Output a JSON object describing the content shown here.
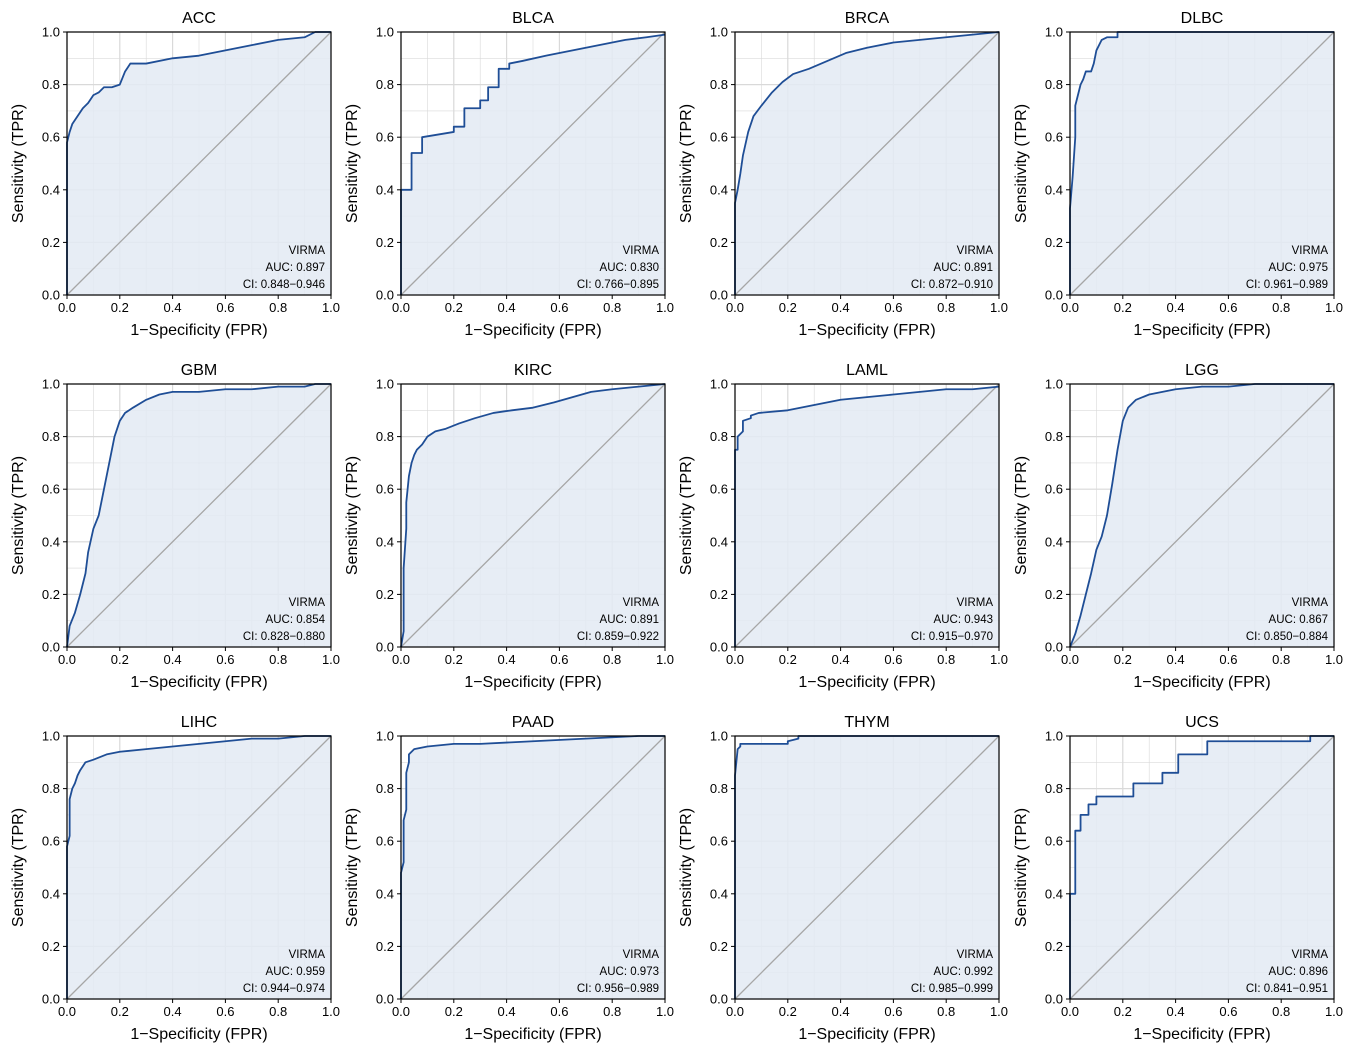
{
  "figure": {
    "x_axis_title": "1−Specificity (FPR)",
    "y_axis_title": "Sensitivity (TPR)",
    "x_tick_labels": [
      "0.0",
      "0.2",
      "0.4",
      "0.6",
      "0.8",
      "1.0"
    ],
    "y_tick_labels": [
      "0.0",
      "0.2",
      "0.4",
      "0.6",
      "0.8",
      "1.0"
    ]
  },
  "colors": {
    "roc_line": "#1f4e96",
    "fill": "#e3eaf3",
    "diagonal": "#a6a6a6",
    "grid": "#d9d9d9"
  },
  "chart_data": [
    {
      "type": "line",
      "title": "ACC",
      "xlabel": "1−Specificity (FPR)",
      "ylabel": "Sensitivity (TPR)",
      "xlim": [
        0,
        1
      ],
      "ylim": [
        0,
        1
      ],
      "grid": true,
      "fill_under_curve": true,
      "reference_line": "diagonal",
      "series": [
        {
          "name": "VIRMA",
          "x": [
            0,
            0,
            0.01,
            0.02,
            0.04,
            0.06,
            0.08,
            0.1,
            0.12,
            0.14,
            0.17,
            0.2,
            0.22,
            0.24,
            0.26,
            0.3,
            0.4,
            0.5,
            0.6,
            0.7,
            0.8,
            0.9,
            0.94,
            1.0
          ],
          "y": [
            0,
            0.58,
            0.62,
            0.65,
            0.68,
            0.71,
            0.73,
            0.76,
            0.77,
            0.79,
            0.79,
            0.8,
            0.85,
            0.88,
            0.88,
            0.88,
            0.9,
            0.91,
            0.93,
            0.95,
            0.97,
            0.98,
            1.0,
            1.0
          ]
        }
      ],
      "annotation": {
        "label": "VIRMA",
        "auc": "AUC: 0.897",
        "ci": "CI: 0.848−0.946"
      }
    },
    {
      "type": "line",
      "title": "BLCA",
      "xlabel": "1−Specificity (FPR)",
      "ylabel": "Sensitivity (TPR)",
      "xlim": [
        0,
        1
      ],
      "ylim": [
        0,
        1
      ],
      "grid": true,
      "fill_under_curve": true,
      "reference_line": "diagonal",
      "series": [
        {
          "name": "VIRMA",
          "x": [
            0,
            0,
            0.04,
            0.04,
            0.08,
            0.08,
            0.2,
            0.2,
            0.24,
            0.24,
            0.3,
            0.3,
            0.33,
            0.33,
            0.37,
            0.37,
            0.41,
            0.41,
            0.46,
            0.55,
            0.65,
            0.75,
            0.85,
            0.93,
            1.0
          ],
          "y": [
            0,
            0.4,
            0.4,
            0.54,
            0.54,
            0.6,
            0.62,
            0.64,
            0.64,
            0.71,
            0.71,
            0.74,
            0.74,
            0.79,
            0.79,
            0.86,
            0.86,
            0.88,
            0.89,
            0.91,
            0.93,
            0.95,
            0.97,
            0.98,
            0.99
          ]
        }
      ],
      "annotation": {
        "label": "VIRMA",
        "auc": "AUC: 0.830",
        "ci": "CI: 0.766−0.895"
      }
    },
    {
      "type": "line",
      "title": "BRCA",
      "xlabel": "1−Specificity (FPR)",
      "ylabel": "Sensitivity (TPR)",
      "xlim": [
        0,
        1
      ],
      "ylim": [
        0,
        1
      ],
      "grid": true,
      "fill_under_curve": true,
      "reference_line": "diagonal",
      "series": [
        {
          "name": "VIRMA",
          "x": [
            0,
            0,
            0.01,
            0.02,
            0.03,
            0.05,
            0.07,
            0.1,
            0.14,
            0.18,
            0.22,
            0.28,
            0.35,
            0.42,
            0.5,
            0.6,
            0.7,
            0.8,
            0.9,
            1.0
          ],
          "y": [
            0,
            0.35,
            0.4,
            0.46,
            0.53,
            0.62,
            0.68,
            0.72,
            0.77,
            0.81,
            0.84,
            0.86,
            0.89,
            0.92,
            0.94,
            0.96,
            0.97,
            0.98,
            0.99,
            1.0
          ]
        }
      ],
      "annotation": {
        "label": "VIRMA",
        "auc": "AUC: 0.891",
        "ci": "CI: 0.872−0.910"
      }
    },
    {
      "type": "line",
      "title": "DLBC",
      "xlabel": "1−Specificity (FPR)",
      "ylabel": "Sensitivity (TPR)",
      "xlim": [
        0,
        1
      ],
      "ylim": [
        0,
        1
      ],
      "grid": true,
      "fill_under_curve": true,
      "reference_line": "diagonal",
      "series": [
        {
          "name": "VIRMA",
          "x": [
            0,
            0,
            0.01,
            0.02,
            0.02,
            0.03,
            0.04,
            0.05,
            0.06,
            0.08,
            0.09,
            0.1,
            0.12,
            0.14,
            0.18,
            0.18,
            1.0
          ],
          "y": [
            0,
            0.33,
            0.45,
            0.6,
            0.72,
            0.76,
            0.8,
            0.82,
            0.85,
            0.85,
            0.88,
            0.93,
            0.97,
            0.98,
            0.98,
            1.0,
            1.0
          ]
        }
      ],
      "annotation": {
        "label": "VIRMA",
        "auc": "AUC: 0.975",
        "ci": "CI: 0.961−0.989"
      }
    },
    {
      "type": "line",
      "title": "GBM",
      "xlabel": "1−Specificity (FPR)",
      "ylabel": "Sensitivity (TPR)",
      "xlim": [
        0,
        1
      ],
      "ylim": [
        0,
        1
      ],
      "grid": true,
      "fill_under_curve": true,
      "reference_line": "diagonal",
      "series": [
        {
          "name": "VIRMA",
          "x": [
            0,
            0.01,
            0.03,
            0.05,
            0.07,
            0.08,
            0.1,
            0.12,
            0.14,
            0.16,
            0.18,
            0.2,
            0.22,
            0.25,
            0.3,
            0.35,
            0.4,
            0.5,
            0.6,
            0.7,
            0.8,
            0.9,
            0.94,
            1.0
          ],
          "y": [
            0,
            0.08,
            0.13,
            0.2,
            0.28,
            0.36,
            0.45,
            0.5,
            0.6,
            0.7,
            0.8,
            0.86,
            0.89,
            0.91,
            0.94,
            0.96,
            0.97,
            0.97,
            0.98,
            0.98,
            0.99,
            0.99,
            1.0,
            1.0
          ]
        }
      ],
      "annotation": {
        "label": "VIRMA",
        "auc": "AUC: 0.854",
        "ci": "CI: 0.828−0.880"
      }
    },
    {
      "type": "line",
      "title": "KIRC",
      "xlabel": "1−Specificity (FPR)",
      "ylabel": "Sensitivity (TPR)",
      "xlim": [
        0,
        1
      ],
      "ylim": [
        0,
        1
      ],
      "grid": true,
      "fill_under_curve": true,
      "reference_line": "diagonal",
      "series": [
        {
          "name": "VIRMA",
          "x": [
            0,
            0.01,
            0.01,
            0.02,
            0.02,
            0.03,
            0.04,
            0.05,
            0.06,
            0.08,
            0.1,
            0.13,
            0.17,
            0.22,
            0.28,
            0.35,
            0.42,
            0.5,
            0.58,
            0.65,
            0.72,
            0.8,
            0.9,
            1.0
          ],
          "y": [
            0,
            0.06,
            0.3,
            0.45,
            0.55,
            0.65,
            0.7,
            0.73,
            0.75,
            0.77,
            0.8,
            0.82,
            0.83,
            0.85,
            0.87,
            0.89,
            0.9,
            0.91,
            0.93,
            0.95,
            0.97,
            0.98,
            0.99,
            1.0
          ]
        }
      ],
      "annotation": {
        "label": "VIRMA",
        "auc": "AUC: 0.891",
        "ci": "CI: 0.859−0.922"
      }
    },
    {
      "type": "line",
      "title": "LAML",
      "xlabel": "1−Specificity (FPR)",
      "ylabel": "Sensitivity (TPR)",
      "xlim": [
        0,
        1
      ],
      "ylim": [
        0,
        1
      ],
      "grid": true,
      "fill_under_curve": true,
      "reference_line": "diagonal",
      "series": [
        {
          "name": "VIRMA",
          "x": [
            0,
            0,
            0.01,
            0.01,
            0.03,
            0.03,
            0.06,
            0.06,
            0.09,
            0.2,
            0.3,
            0.4,
            0.5,
            0.6,
            0.7,
            0.8,
            0.9,
            1.0
          ],
          "y": [
            0,
            0.75,
            0.75,
            0.8,
            0.82,
            0.86,
            0.87,
            0.88,
            0.89,
            0.9,
            0.92,
            0.94,
            0.95,
            0.96,
            0.97,
            0.98,
            0.98,
            0.99
          ]
        }
      ],
      "annotation": {
        "label": "VIRMA",
        "auc": "AUC: 0.943",
        "ci": "CI: 0.915−0.970"
      }
    },
    {
      "type": "line",
      "title": "LGG",
      "xlabel": "1−Specificity (FPR)",
      "ylabel": "Sensitivity (TPR)",
      "xlim": [
        0,
        1
      ],
      "ylim": [
        0,
        1
      ],
      "grid": true,
      "fill_under_curve": true,
      "reference_line": "diagonal",
      "series": [
        {
          "name": "VIRMA",
          "x": [
            0,
            0.02,
            0.04,
            0.06,
            0.08,
            0.1,
            0.12,
            0.14,
            0.16,
            0.18,
            0.2,
            0.22,
            0.25,
            0.3,
            0.4,
            0.5,
            0.6,
            0.7,
            0.8,
            0.9,
            1.0
          ],
          "y": [
            0,
            0.05,
            0.12,
            0.2,
            0.28,
            0.37,
            0.42,
            0.5,
            0.62,
            0.75,
            0.86,
            0.91,
            0.94,
            0.96,
            0.98,
            0.99,
            0.99,
            1.0,
            1.0,
            1.0,
            1.0
          ]
        }
      ],
      "annotation": {
        "label": "VIRMA",
        "auc": "AUC: 0.867",
        "ci": "CI: 0.850−0.884"
      }
    },
    {
      "type": "line",
      "title": "LIHC",
      "xlabel": "1−Specificity (FPR)",
      "ylabel": "Sensitivity (TPR)",
      "xlim": [
        0,
        1
      ],
      "ylim": [
        0,
        1
      ],
      "grid": true,
      "fill_under_curve": true,
      "reference_line": "diagonal",
      "series": [
        {
          "name": "VIRMA",
          "x": [
            0,
            0,
            0.01,
            0.01,
            0.02,
            0.03,
            0.04,
            0.05,
            0.07,
            0.1,
            0.15,
            0.2,
            0.3,
            0.4,
            0.5,
            0.6,
            0.7,
            0.8,
            0.9,
            1.0
          ],
          "y": [
            0,
            0.58,
            0.62,
            0.76,
            0.8,
            0.82,
            0.85,
            0.87,
            0.9,
            0.91,
            0.93,
            0.94,
            0.95,
            0.96,
            0.97,
            0.98,
            0.99,
            0.99,
            1.0,
            1.0
          ]
        }
      ],
      "annotation": {
        "label": "VIRMA",
        "auc": "AUC: 0.959",
        "ci": "CI: 0.944−0.974"
      }
    },
    {
      "type": "line",
      "title": "PAAD",
      "xlabel": "1−Specificity (FPR)",
      "ylabel": "Sensitivity (TPR)",
      "xlim": [
        0,
        1
      ],
      "ylim": [
        0,
        1
      ],
      "grid": true,
      "fill_under_curve": true,
      "reference_line": "diagonal",
      "series": [
        {
          "name": "VIRMA",
          "x": [
            0,
            0,
            0.01,
            0.01,
            0.02,
            0.02,
            0.03,
            0.03,
            0.05,
            0.1,
            0.2,
            0.3,
            0.5,
            0.7,
            0.9,
            1.0
          ],
          "y": [
            0,
            0.48,
            0.52,
            0.68,
            0.72,
            0.86,
            0.9,
            0.93,
            0.95,
            0.96,
            0.97,
            0.97,
            0.98,
            0.99,
            1.0,
            1.0
          ]
        }
      ],
      "annotation": {
        "label": "VIRMA",
        "auc": "AUC: 0.973",
        "ci": "CI: 0.956−0.989"
      }
    },
    {
      "type": "line",
      "title": "THYM",
      "xlabel": "1−Specificity (FPR)",
      "ylabel": "Sensitivity (TPR)",
      "xlim": [
        0,
        1
      ],
      "ylim": [
        0,
        1
      ],
      "grid": true,
      "fill_under_curve": true,
      "reference_line": "diagonal",
      "series": [
        {
          "name": "VIRMA",
          "x": [
            0,
            0,
            0.005,
            0.01,
            0.02,
            0.02,
            0.2,
            0.2,
            0.24,
            0.24,
            1.0
          ],
          "y": [
            0,
            0.85,
            0.9,
            0.95,
            0.96,
            0.97,
            0.97,
            0.98,
            0.99,
            1.0,
            1.0
          ]
        }
      ],
      "annotation": {
        "label": "VIRMA",
        "auc": "AUC: 0.992",
        "ci": "CI: 0.985−0.999"
      }
    },
    {
      "type": "line",
      "title": "UCS",
      "xlabel": "1−Specificity (FPR)",
      "ylabel": "Sensitivity (TPR)",
      "xlim": [
        0,
        1
      ],
      "ylim": [
        0,
        1
      ],
      "grid": true,
      "fill_under_curve": true,
      "reference_line": "diagonal",
      "series": [
        {
          "name": "VIRMA",
          "x": [
            0,
            0,
            0.02,
            0.02,
            0.04,
            0.04,
            0.07,
            0.07,
            0.1,
            0.1,
            0.24,
            0.24,
            0.35,
            0.35,
            0.41,
            0.41,
            0.52,
            0.52,
            0.91,
            0.91,
            1.0
          ],
          "y": [
            0,
            0.4,
            0.4,
            0.64,
            0.64,
            0.7,
            0.7,
            0.74,
            0.74,
            0.77,
            0.77,
            0.82,
            0.82,
            0.86,
            0.86,
            0.93,
            0.93,
            0.98,
            0.98,
            1.0,
            1.0
          ]
        }
      ],
      "annotation": {
        "label": "VIRMA",
        "auc": "AUC: 0.896",
        "ci": "CI: 0.841−0.951"
      }
    }
  ]
}
